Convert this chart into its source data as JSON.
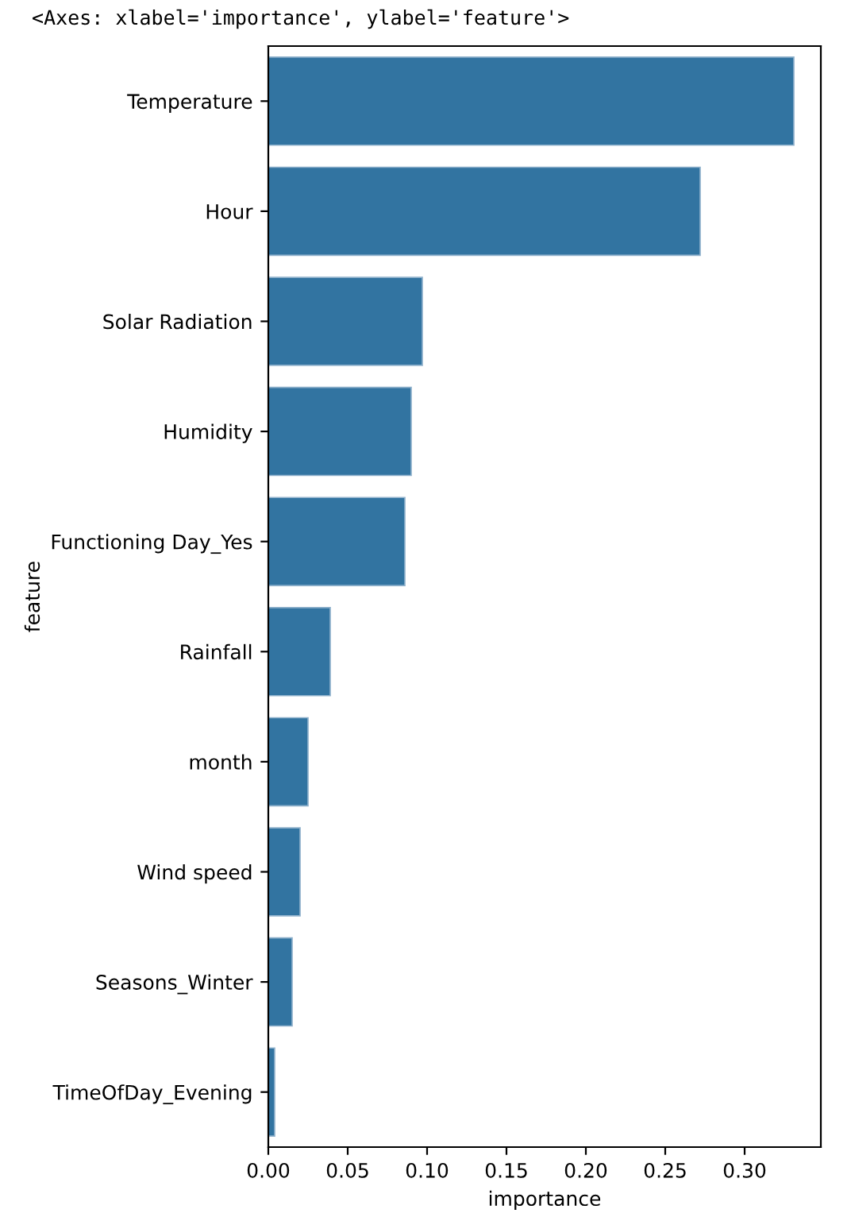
{
  "chart_data": {
    "type": "bar",
    "orientation": "horizontal",
    "xlabel": "importance",
    "ylabel": "feature",
    "annotations": [
      "<Axes: xlabel='importance', ylabel='feature'>"
    ],
    "categories": [
      "Temperature",
      "Hour",
      "Solar Radiation",
      "Humidity",
      "Functioning Day_Yes",
      "Rainfall",
      "month",
      "Wind speed",
      "Seasons_Winter",
      "TimeOfDay_Evening"
    ],
    "values": [
      0.331,
      0.272,
      0.097,
      0.09,
      0.086,
      0.039,
      0.025,
      0.02,
      0.015,
      0.004
    ],
    "color": "#3274a1",
    "xlim": [
      0,
      0.348
    ],
    "xticks": [
      {
        "value": 0,
        "label": "0.00"
      },
      {
        "value": 0.05,
        "label": "0.05"
      },
      {
        "value": 0.1,
        "label": "0.10"
      },
      {
        "value": 0.15,
        "label": "0.15"
      },
      {
        "value": 0.2,
        "label": "0.20"
      },
      {
        "value": 0.25,
        "label": "0.25"
      },
      {
        "value": 0.3,
        "label": "0.30"
      }
    ],
    "grid": false,
    "legend": false
  }
}
